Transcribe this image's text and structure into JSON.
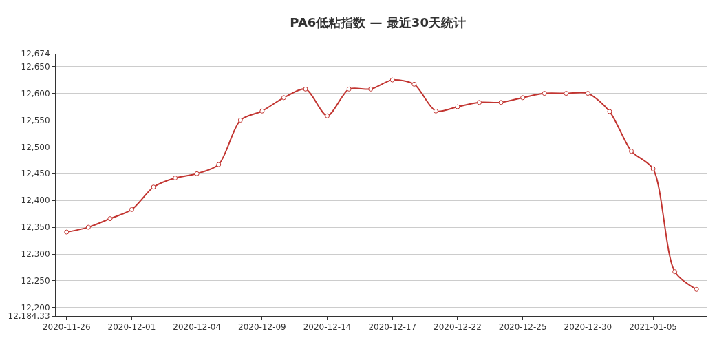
{
  "chart_data": {
    "type": "line",
    "title": "PA6低粘指数 — 最近30天统计",
    "categories": [
      "2020-11-26",
      null,
      null,
      "2020-12-01",
      null,
      null,
      "2020-12-04",
      null,
      null,
      "2020-12-09",
      null,
      null,
      "2020-12-14",
      null,
      null,
      "2020-12-17",
      null,
      null,
      "2020-12-22",
      null,
      null,
      "2020-12-25",
      null,
      null,
      "2020-12-30",
      null,
      null,
      "2021-01-05",
      null,
      null
    ],
    "series": [
      {
        "color": "#c23531",
        "values": [
          12341,
          12350,
          12366,
          12383,
          12425,
          12442,
          12450,
          12467,
          12550,
          12567,
          12592,
          12608,
          12558,
          12608,
          12608,
          12625,
          12617,
          12567,
          12575,
          12583,
          12583,
          12592,
          12600,
          12600,
          12600,
          12566,
          12492,
          12459,
          12267,
          12234
        ]
      }
    ],
    "ylim": [
      12184.33,
      12674
    ],
    "yticks": [
      {
        "value": 12184.33,
        "label": "12,184.33"
      },
      {
        "value": 12200,
        "label": "12,200"
      },
      {
        "value": 12250,
        "label": "12,250"
      },
      {
        "value": 12300,
        "label": "12,300"
      },
      {
        "value": 12350,
        "label": "12,350"
      },
      {
        "value": 12400,
        "label": "12,400"
      },
      {
        "value": 12450,
        "label": "12,450"
      },
      {
        "value": 12500,
        "label": "12,500"
      },
      {
        "value": 12550,
        "label": "12,550"
      },
      {
        "value": 12600,
        "label": "12,600"
      },
      {
        "value": 12650,
        "label": "12,650"
      },
      {
        "value": 12674,
        "label": "12,674"
      }
    ],
    "grid": "y",
    "marker": "circle",
    "line_style": "solid"
  }
}
